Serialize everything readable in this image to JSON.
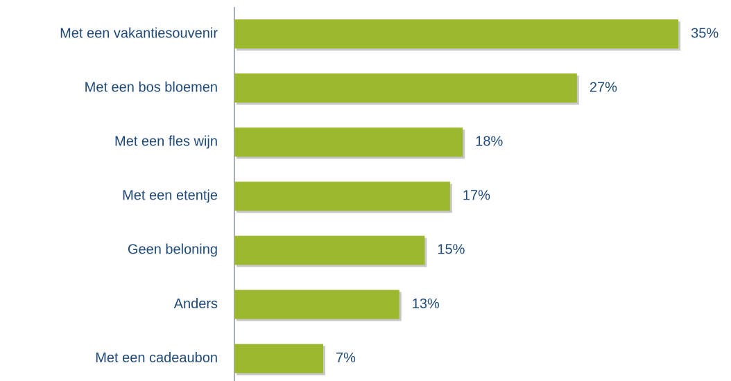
{
  "chart_data": {
    "type": "bar",
    "categories": [
      "Met een vakantiesouvenir",
      "Met een bos bloemen",
      "Met een fles wijn",
      "Met een etentje",
      "Geen beloning",
      "Anders",
      "Met een cadeaubon"
    ],
    "values": [
      35,
      27,
      18,
      17,
      15,
      13,
      7
    ],
    "value_labels": [
      "35%",
      "27%",
      "18%",
      "17%",
      "15%",
      "13%",
      "7%"
    ],
    "color": "#9cb82e"
  }
}
